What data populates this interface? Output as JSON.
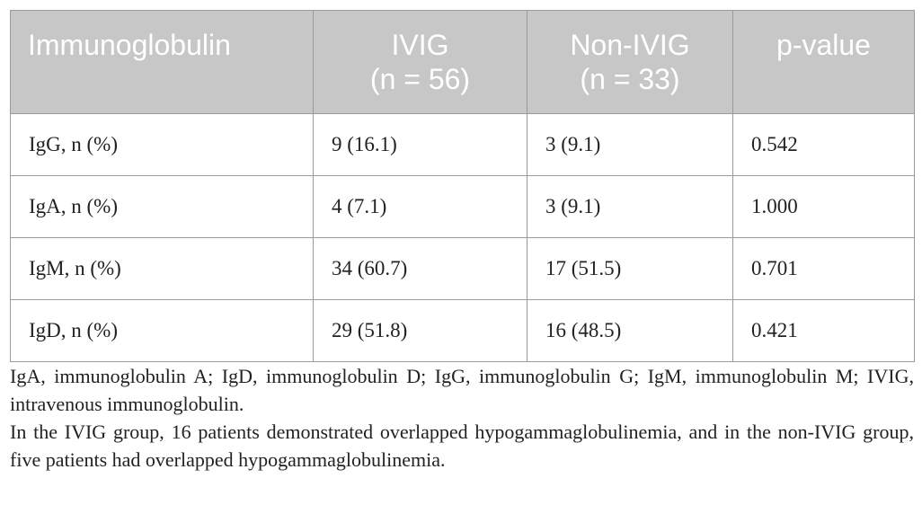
{
  "table": {
    "headers": [
      {
        "line1": "Immunoglobulin",
        "line2": ""
      },
      {
        "line1": "IVIG",
        "line2": "(n = 56)"
      },
      {
        "line1": "Non-IVIG",
        "line2": "(n = 33)"
      },
      {
        "line1": "p-value",
        "line2": ""
      }
    ],
    "rows": [
      {
        "label": "IgG, n (%)",
        "ivig": "9 (16.1)",
        "non_ivig": "3 (9.1)",
        "p": "0.542"
      },
      {
        "label": "IgA, n (%)",
        "ivig": "4 (7.1)",
        "non_ivig": "3 (9.1)",
        "p": "1.000"
      },
      {
        "label": "IgM, n (%)",
        "ivig": "34 (60.7)",
        "non_ivig": "17 (51.5)",
        "p": "0.701"
      },
      {
        "label": "IgD, n (%)",
        "ivig": "29 (51.8)",
        "non_ivig": "16 (48.5)",
        "p": "0.421"
      }
    ]
  },
  "footnotes": {
    "abbreviations": "IgA, immunoglobulin A; IgD, immunoglobulin D; IgG, immunoglobulin G; IgM, immunoglobulin M; IVIG, intravenous immunoglobulin.",
    "note": "In the IVIG group, 16 patients demonstrated overlapped hypogammaglobulinemia, and in the non-IVIG group, five patients had overlapped hypogammaglobulinemia."
  }
}
